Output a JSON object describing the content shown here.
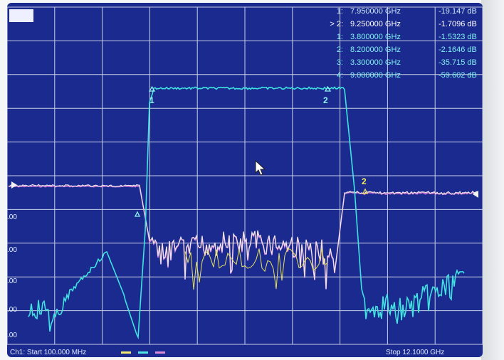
{
  "channel_label": "",
  "y_tick_labels": [
    ".00",
    ".00",
    ".00",
    ".00",
    ".00"
  ],
  "markers": [
    {
      "id": "1:",
      "freq": "7.950000 GHz",
      "value": "-19.147 dB",
      "style": "normal"
    },
    {
      "id": "> 2:",
      "freq": "9.250000 GHz",
      "value": "-1.7096 dB",
      "style": "active"
    },
    {
      "id": "1:",
      "freq": "3.800000 GHz",
      "value": "-1.5323 dB",
      "style": "trace2"
    },
    {
      "id": "2:",
      "freq": "8.200000 GHz",
      "value": "-2.1646 dB",
      "style": "trace2"
    },
    {
      "id": "3:",
      "freq": "3.300000 GHz",
      "value": "-35.715 dB",
      "style": "trace2"
    },
    {
      "id": "4:",
      "freq": "9.000000 GHz",
      "value": "-59.602 dB",
      "style": "trace2"
    }
  ],
  "footer": {
    "start": "Ch1: Start  100.000 MHz",
    "stop": "Stop  12.1000 GHz"
  },
  "trace_markers": [
    {
      "label": "1",
      "color": "#8ff3f3"
    },
    {
      "label": "2",
      "color": "#8ff3f3"
    },
    {
      "label": "2",
      "color": "#f4ee54"
    }
  ],
  "colors": {
    "screen_bg": "#1b2a8e",
    "grid": "#c9cfe6",
    "trace_cyan": "#3fe3e0",
    "trace_white": "#ece6e6",
    "trace_magenta": "#d47ad8",
    "trace_yellow": "#e6e25a"
  }
}
